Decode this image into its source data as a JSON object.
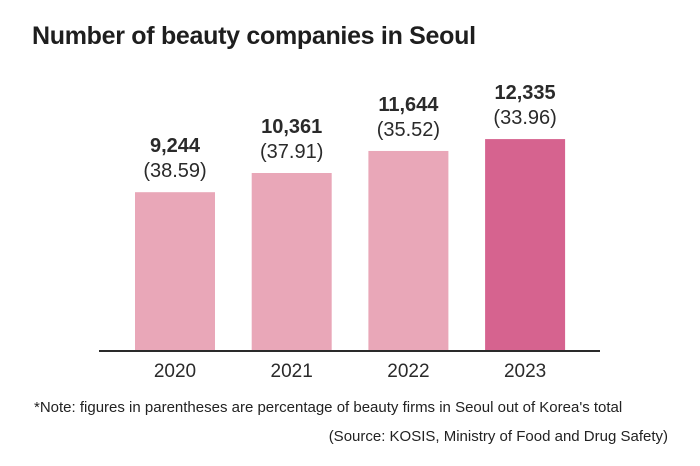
{
  "chart_data": {
    "type": "bar",
    "title": "Number of beauty companies in Seoul",
    "categories": [
      "2020",
      "2021",
      "2022",
      "2023"
    ],
    "values": [
      9244,
      10361,
      11644,
      12335
    ],
    "value_labels": [
      "9,244",
      "10,361",
      "11,644",
      "12,335"
    ],
    "share_labels": [
      "(38.59)",
      "(37.91)",
      "(35.52)",
      "(33.96)"
    ],
    "shares": [
      38.59,
      37.91,
      35.52,
      33.96
    ],
    "colors": [
      "#e9a7b8",
      "#e9a7b8",
      "#e9a7b8",
      "#d6638f"
    ],
    "xlabel": "",
    "ylabel": "",
    "ylim": [
      0,
      14000
    ],
    "grid": false,
    "legend": "none"
  },
  "footer": {
    "note": "*Note: figures in parentheses are percentage of beauty firms in Seoul out of Korea's total",
    "source": "(Source: KOSIS, Ministry of Food and Drug Safety)"
  }
}
